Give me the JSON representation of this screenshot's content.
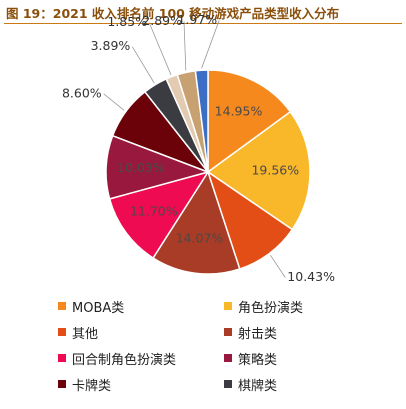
{
  "figure": {
    "title": "图 19：2021 收入排名前 100 移动游戏产品类型收入分布"
  },
  "chart_data": {
    "type": "pie",
    "title": "",
    "legend_position": "bottom",
    "slices": [
      {
        "name": "MOBA类",
        "value": 14.95,
        "label": "14.95%",
        "color": "#f5891e"
      },
      {
        "name": "角色扮演类",
        "value": 19.56,
        "label": "19.56%",
        "color": "#f9b72a"
      },
      {
        "name": "其他",
        "value": 10.43,
        "label": "10.43%",
        "color": "#e24e16"
      },
      {
        "name": "射击类",
        "value": 14.07,
        "label": "14.07%",
        "color": "#a83c26"
      },
      {
        "name": "回合制角色扮演类",
        "value": 11.7,
        "label": "11.70%",
        "color": "#ee0b52"
      },
      {
        "name": "策略类",
        "value": 10.03,
        "label": "10.03%",
        "color": "#99183d"
      },
      {
        "name": "卡牌类",
        "value": 8.6,
        "label": "8.60%",
        "color": "#6b0109"
      },
      {
        "name": "棋牌类",
        "value": 3.89,
        "label": "3.89%",
        "color": "#3a3c41"
      },
      {
        "name": "",
        "value": 1.85,
        "label": "1.85%",
        "color": "#e3cbb2"
      },
      {
        "name": "",
        "value": 2.89,
        "label": "2.89%",
        "color": "#c8a172"
      },
      {
        "name": "",
        "value": 1.97,
        "label": "1.97%",
        "color": "#3b6ec4"
      }
    ]
  }
}
